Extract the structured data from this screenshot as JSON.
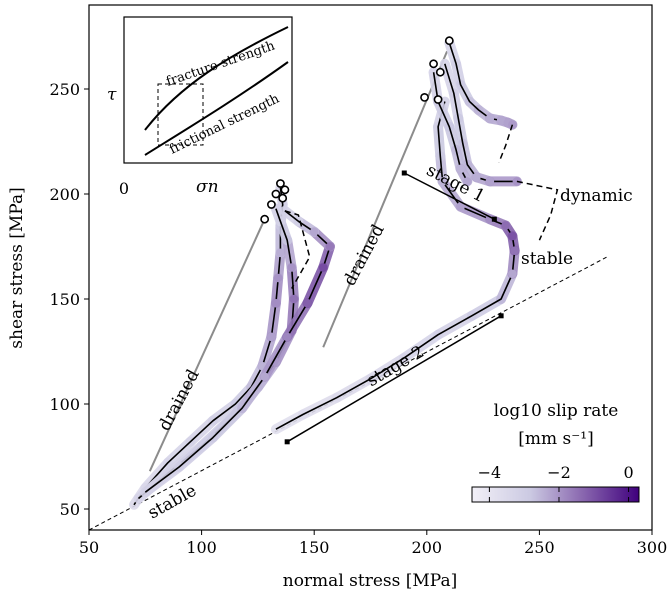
{
  "chart_data": {
    "type": "line",
    "xlabel": "normal stress [MPa]",
    "ylabel": "shear stress [MPa]",
    "xlim": [
      50,
      300
    ],
    "ylim": [
      40,
      290
    ],
    "x_ticks": [
      50,
      100,
      150,
      200,
      250,
      300
    ],
    "y_ticks": [
      50,
      100,
      150,
      200,
      250
    ],
    "grid": false,
    "colorbar": {
      "label_line1": "log10 slip rate",
      "label_line2": "[mm s⁻¹]",
      "ticks": [
        "−4",
        "−2",
        "0"
      ],
      "range": [
        -4.5,
        0.3
      ],
      "color_low": "#f2f0f7",
      "color_high": "#3f007d"
    },
    "reference_line": {
      "style": "dashed",
      "points": [
        [
          50,
          40
        ],
        [
          280,
          170
        ]
      ]
    },
    "paths": [
      {
        "points": [
          [
            70,
            52
          ],
          [
            75,
            60
          ],
          [
            85,
            72
          ],
          [
            95,
            82
          ],
          [
            105,
            92
          ],
          [
            115,
            100
          ],
          [
            122,
            108
          ],
          [
            127,
            118
          ],
          [
            131,
            132
          ],
          [
            133,
            148
          ],
          [
            134,
            160
          ],
          [
            135,
            172
          ],
          [
            135,
            185
          ],
          [
            136,
            195
          ],
          [
            135,
            203
          ]
        ],
        "rates": [
          -3.6,
          -3.5,
          -3.4,
          -3.3,
          -3.2,
          -3.1,
          -2.8,
          -2.5,
          -2.2,
          -1.9,
          -2.0,
          -2.4,
          -2.8,
          -3.1,
          -3.5
        ]
      },
      {
        "points": [
          [
            72,
            55
          ],
          [
            85,
            67
          ],
          [
            100,
            80
          ],
          [
            115,
            95
          ],
          [
            125,
            108
          ],
          [
            133,
            120
          ],
          [
            140,
            135
          ],
          [
            141,
            150
          ],
          [
            140,
            165
          ],
          [
            138,
            178
          ],
          [
            135,
            187
          ],
          [
            133,
            193
          ]
        ],
        "rates": [
          -3.4,
          -3.3,
          -3.2,
          -2.9,
          -2.6,
          -2.2,
          -1.8,
          -1.5,
          -2.0,
          -2.6,
          -3.0,
          -3.4
        ]
      },
      {
        "points": [
          [
            75,
            58
          ],
          [
            90,
            70
          ],
          [
            105,
            84
          ],
          [
            118,
            98
          ],
          [
            128,
            113
          ],
          [
            138,
            132
          ],
          [
            147,
            148
          ],
          [
            154,
            165
          ],
          [
            157,
            175
          ],
          [
            150,
            182
          ],
          [
            143,
            187
          ],
          [
            137,
            192
          ]
        ],
        "rates": [
          -3.2,
          -3.1,
          -3.0,
          -2.7,
          -2.3,
          -1.8,
          -1.2,
          -0.9,
          -1.6,
          -2.3,
          -2.9,
          -3.5
        ]
      },
      {
        "points": [
          [
            133,
            88
          ],
          [
            145,
            95
          ],
          [
            160,
            103
          ],
          [
            175,
            112
          ],
          [
            190,
            122
          ],
          [
            205,
            133
          ],
          [
            220,
            142
          ],
          [
            233,
            150
          ],
          [
            238,
            162
          ],
          [
            239,
            173
          ],
          [
            238,
            180
          ],
          [
            235,
            185
          ],
          [
            228,
            188
          ],
          [
            215,
            194
          ],
          [
            207,
            206
          ],
          [
            206,
            218
          ],
          [
            205,
            232
          ],
          [
            208,
            244
          ]
        ],
        "rates": [
          -3.8,
          -3.7,
          -3.6,
          -3.5,
          -3.4,
          -3.3,
          -3.1,
          -2.8,
          -2.3,
          -1.5,
          -1.0,
          -1.4,
          -1.9,
          -2.2,
          -2.5,
          -2.7,
          -3.0,
          -3.4
        ]
      },
      {
        "points": [
          [
            210,
            272
          ],
          [
            213,
            262
          ],
          [
            215,
            252
          ],
          [
            219,
            244
          ],
          [
            223,
            240
          ],
          [
            228,
            236
          ],
          [
            233,
            235
          ],
          [
            236,
            234
          ],
          [
            238,
            233
          ]
        ],
        "rates": [
          -3.5,
          -3.2,
          -3.0,
          -2.8,
          -2.6,
          -2.4,
          -2.3,
          -2.2,
          -2.1
        ]
      },
      {
        "points": [
          [
            208,
            262
          ],
          [
            212,
            248
          ],
          [
            214,
            236
          ],
          [
            216,
            224
          ],
          [
            218,
            214
          ],
          [
            222,
            208
          ],
          [
            228,
            206
          ],
          [
            240,
            206
          ]
        ],
        "rates": [
          -3.4,
          -3.2,
          -3.0,
          -2.8,
          -2.6,
          -2.4,
          -2.2,
          -2.0
        ]
      },
      {
        "points": [
          [
            203,
            258
          ],
          [
            205,
            244
          ],
          [
            210,
            232
          ],
          [
            213,
            221
          ],
          [
            215,
            212
          ],
          [
            218,
            206
          ]
        ],
        "rates": [
          -3.3,
          -3.1,
          -2.9,
          -2.7,
          -2.5,
          -2.3
        ]
      }
    ],
    "open_circles": [
      [
        210,
        273
      ],
      [
        206,
        258
      ],
      [
        203,
        262
      ],
      [
        199,
        246
      ],
      [
        205,
        245
      ],
      [
        135,
        205
      ],
      [
        133,
        200
      ],
      [
        136,
        198
      ],
      [
        131,
        195
      ],
      [
        128,
        188
      ],
      [
        137,
        202
      ]
    ],
    "drained_lines": [
      {
        "points": [
          [
            77,
            68
          ],
          [
            128,
            188
          ]
        ]
      },
      {
        "points": [
          [
            154,
            127
          ],
          [
            209,
            268
          ]
        ]
      }
    ],
    "dashed_branches": [
      {
        "points": [
          [
            137,
            192
          ],
          [
            143,
            190
          ],
          [
            148,
            170
          ],
          [
            140,
            155
          ]
        ]
      },
      {
        "points": [
          [
            238,
            233
          ],
          [
            235,
            223
          ],
          [
            232,
            215
          ]
        ]
      },
      {
        "points": [
          [
            240,
            206
          ],
          [
            258,
            202
          ],
          [
            255,
            190
          ],
          [
            250,
            178
          ]
        ]
      }
    ],
    "stage_markers": [
      {
        "label": "stage 1",
        "from": [
          190,
          210
        ],
        "to": [
          230,
          188
        ]
      },
      {
        "label": "stage 2",
        "from": [
          138,
          82
        ],
        "to": [
          233,
          142
        ]
      }
    ],
    "annotations": {
      "drained": "drained",
      "stable": "stable",
      "dynamic": "dynamic"
    }
  },
  "inset": {
    "xlabel": "σn",
    "ylabel": "τ",
    "zero_tick": "0",
    "upper_curve_label": "fracture strength",
    "lower_curve_label": "frictional strength"
  }
}
